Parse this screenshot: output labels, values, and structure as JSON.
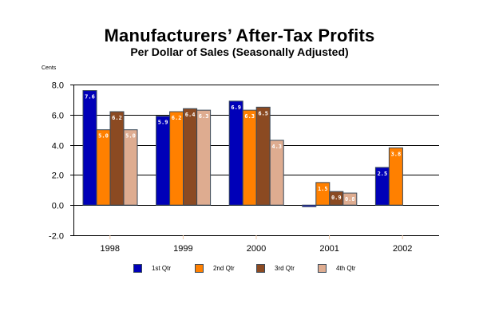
{
  "chart_data": {
    "type": "bar",
    "title": "Manufacturers’ After-Tax Profits",
    "subtitle": "Per Dollar of Sales (Seasonally Adjusted)",
    "unit_label": "Cents",
    "xlabel": "",
    "ylabel": "Cents",
    "ylim": [
      -2.0,
      8.0
    ],
    "yticks": [
      8.0,
      6.0,
      4.0,
      2.0,
      0.0,
      -2.0
    ],
    "ytick_labels": [
      "8.0",
      "6.0",
      "4.0",
      "2.0",
      "0.0",
      "-2.0"
    ],
    "grid": true,
    "categories": [
      "1998",
      "1999",
      "2000",
      "2001",
      "2002"
    ],
    "series": [
      {
        "name": "1st Qtr",
        "color": "#0000b8",
        "values": [
          7.6,
          5.9,
          6.9,
          -0.1,
          2.5
        ],
        "labels": [
          "7.6",
          "5.9",
          "6.9",
          "",
          "2.5"
        ]
      },
      {
        "name": "2nd Qtr",
        "color": "#ff8000",
        "values": [
          5.0,
          6.2,
          6.3,
          1.5,
          3.8
        ],
        "labels": [
          "5.0",
          "6.2",
          "6.3",
          "1.5",
          "3.8"
        ]
      },
      {
        "name": "3rd Qtr",
        "color": "#8b4a22",
        "values": [
          6.2,
          6.4,
          6.5,
          0.9,
          null
        ],
        "labels": [
          "6.2",
          "6.4",
          "6.5",
          "0.9",
          ""
        ]
      },
      {
        "name": "4th Qtr",
        "color": "#deac90",
        "values": [
          5.0,
          6.3,
          4.3,
          0.8,
          null
        ],
        "labels": [
          "5.0",
          "6.3",
          "4.3",
          "0.8",
          ""
        ]
      }
    ],
    "legend_position": "bottom"
  }
}
